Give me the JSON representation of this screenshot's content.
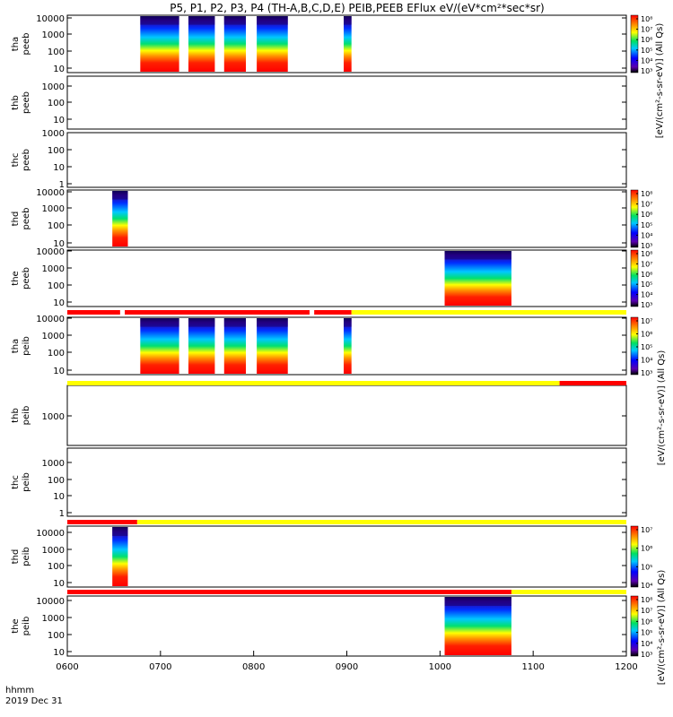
{
  "chart_data": {
    "type": "heatmap",
    "title": "P5, P1, P2, P3, P4 (TH-A,B,C,D,E) PEIB,PEEB EFlux eV/(eV*cm²*sec*sr)",
    "x_tick_labels": [
      "0600",
      "0700",
      "0800",
      "0900",
      "1000",
      "1100",
      "1200"
    ],
    "x_range_hhmm": [
      "0600",
      "1200"
    ],
    "x_label_lines": [
      "hhmm",
      "2019 Dec 31"
    ],
    "colorbar_units": "[eV/(cm²-s-sr-eV)] (All Qs)",
    "panels": [
      {
        "id": "tha-peeb",
        "label": [
          "tha",
          "peeb"
        ],
        "y_tick_labels": [
          "10",
          "100",
          "1000",
          "10000"
        ],
        "colorbar_tick_labels": [
          "10³",
          "10⁴",
          "10⁵",
          "10⁶",
          "10⁷",
          "10⁸"
        ],
        "colorbar_max_label": "10⁸",
        "data_intervals_hhmm": [
          [
            "0647",
            "0712"
          ],
          [
            "0718",
            "0735"
          ],
          [
            "0741",
            "0755"
          ],
          [
            "0802",
            "0822"
          ],
          [
            "0858",
            "0903"
          ]
        ]
      },
      {
        "id": "thb-peeb",
        "label": [
          "thb",
          "peeb"
        ],
        "y_tick_labels": [
          "10",
          "100",
          "1000"
        ],
        "data_intervals_hhmm": []
      },
      {
        "id": "thc-peeb",
        "label": [
          "thc",
          "peeb"
        ],
        "y_tick_labels": [
          "1",
          "10",
          "100",
          "1000"
        ],
        "data_intervals_hhmm": []
      },
      {
        "id": "thd-peeb",
        "label": [
          "thd",
          "peeb"
        ],
        "y_tick_labels": [
          "10",
          "100",
          "1000",
          "10000"
        ],
        "colorbar_tick_labels": [
          "10³",
          "10⁴",
          "10⁵",
          "10⁶",
          "10⁷",
          "10⁸"
        ],
        "data_intervals_hhmm": [
          [
            "0629",
            "0639"
          ]
        ]
      },
      {
        "id": "the-peeb",
        "label": [
          "the",
          "peeb"
        ],
        "y_tick_labels": [
          "10",
          "100",
          "1000",
          "10000"
        ],
        "colorbar_tick_labels": [
          "10³",
          "10⁴",
          "10⁵",
          "10⁶",
          "10⁷",
          "10⁸"
        ],
        "data_intervals_hhmm": [
          [
            "1003",
            "1046"
          ]
        ]
      },
      {
        "id": "tha-peib",
        "label": [
          "tha",
          "peib"
        ],
        "y_tick_labels": [
          "10",
          "100",
          "1000",
          "10000"
        ],
        "colorbar_tick_labels": [
          "10³",
          "10⁴",
          "10⁵",
          "10⁶",
          "10⁷"
        ],
        "data_intervals_hhmm": [
          [
            "0647",
            "0712"
          ],
          [
            "0718",
            "0735"
          ],
          [
            "0741",
            "0755"
          ],
          [
            "0802",
            "0822"
          ],
          [
            "0858",
            "0903"
          ]
        ]
      },
      {
        "id": "thb-peib",
        "label": [
          "thb",
          "peib"
        ],
        "y_tick_labels": [
          "1000"
        ],
        "data_intervals_hhmm": []
      },
      {
        "id": "thc-peib",
        "label": [
          "thc",
          "peib"
        ],
        "y_tick_labels": [
          "1",
          "10",
          "100",
          "1000"
        ],
        "data_intervals_hhmm": []
      },
      {
        "id": "thd-peib",
        "label": [
          "thd",
          "peib"
        ],
        "y_tick_labels": [
          "10",
          "100",
          "1000",
          "10000"
        ],
        "colorbar_tick_labels": [
          "10⁴",
          "10⁵",
          "10⁶",
          "10⁷"
        ],
        "data_intervals_hhmm": [
          [
            "0629",
            "0639"
          ]
        ]
      },
      {
        "id": "the-peib",
        "label": [
          "the",
          "peib"
        ],
        "y_tick_labels": [
          "10",
          "100",
          "1000",
          "10000"
        ],
        "colorbar_tick_labels": [
          "10³",
          "10⁴",
          "10⁵",
          "10⁶",
          "10⁷",
          "10⁸"
        ],
        "data_intervals_hhmm": [
          [
            "1003",
            "1046"
          ]
        ]
      }
    ],
    "status_bars": [
      {
        "id": "status-bar-1",
        "segments": [
          {
            "start": "0600",
            "end": "0634",
            "color": "#ff0000"
          },
          {
            "start": "0637",
            "end": "0836",
            "color": "#ff0000"
          },
          {
            "start": "0839",
            "end": "0903",
            "color": "#ff0000"
          },
          {
            "start": "0903",
            "end": "1200",
            "color": "#ffff00"
          }
        ]
      },
      {
        "id": "status-bar-2",
        "segments": [
          {
            "start": "0600",
            "end": "1117",
            "color": "#ffff00"
          },
          {
            "start": "1117",
            "end": "1200",
            "color": "#ff0000"
          }
        ]
      },
      {
        "id": "status-bar-3",
        "segments": [
          {
            "start": "0600",
            "end": "0645",
            "color": "#ff0000"
          },
          {
            "start": "0645",
            "end": "1200",
            "color": "#ffff00"
          }
        ]
      },
      {
        "id": "status-bar-4",
        "segments": [
          {
            "start": "0600",
            "end": "1046",
            "color": "#ff0000"
          },
          {
            "start": "1046",
            "end": "1200",
            "color": "#ffff00"
          }
        ]
      }
    ]
  }
}
